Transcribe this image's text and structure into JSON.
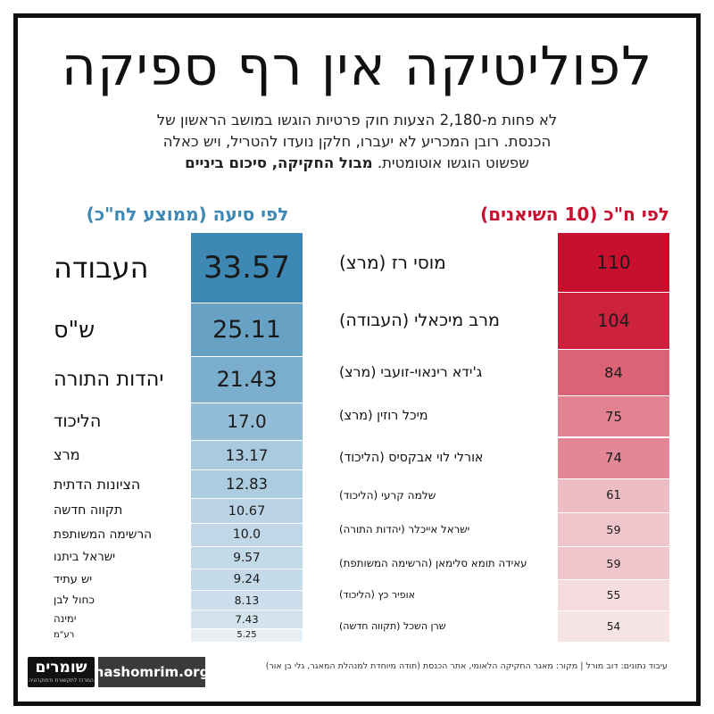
{
  "header": {
    "title": "לפוליטיקה אין רף ספיקה",
    "subtitle_line1": "לא פחות מ-2,180 הצעות חוק פרטיות הוגשו במושב הראשון של",
    "subtitle_line2": "הכנסת. רובן המכריע לא יעברו, חלקן נועדו להטריל, ויש כאלה",
    "subtitle_line3_normal": "שפשוט הוגשו אוטומטית.",
    "subtitle_line3_bold": "מבול החקיקה, סיכום ביניים"
  },
  "colors": {
    "left_accent": "#3d88b5",
    "right_accent": "#c8102e"
  },
  "chart_data": [
    {
      "type": "bar",
      "title": "לפי סיעה (ממוצע לח\"כ)",
      "categories": [
        "העבודה",
        "ש\"ס",
        "יהדות התורה",
        "הליכוד",
        "מרצ",
        "הציונות הדתית",
        "תקווה חדשה",
        "הרשימה המשותפת",
        "ישראל ביתנו",
        "יש עתיד",
        "כחול לבן",
        "ימינה",
        "רע\"מ"
      ],
      "values": [
        33.57,
        25.11,
        21.43,
        17.0,
        13.17,
        12.83,
        10.67,
        10.0,
        9.57,
        9.24,
        8.13,
        7.43,
        5.25
      ],
      "value_labels": [
        "33.57",
        "25.11",
        "21.43",
        "17.0",
        "13.17",
        "12.83",
        "10.67",
        "10.0",
        "9.57",
        "9.24",
        "8.13",
        "7.43",
        "5.25"
      ]
    },
    {
      "type": "bar",
      "title": "לפי ח\"כ (10 השיאנים)",
      "categories": [
        "מוסי רז (מרצ)",
        "מרב מיכאלי (העבודה)",
        "ג'ידא רינאוי-זועבי (מרצ)",
        "מיכל רוזין (מרצ)",
        "אורלי לוי אבקסיס (הליכוד)",
        "שלמה קרעי (הליכוד)",
        "ישראל אייכלר (יהדות התורה)",
        "עאידה תומא סלימאן (הרשימה המשותפת)",
        "אופיר כץ (הליכוד)",
        "שרן השכל (תקווה חדשה)"
      ],
      "values": [
        110,
        104,
        84,
        75,
        74,
        61,
        59,
        59,
        55,
        54
      ],
      "value_labels": [
        "110",
        "104",
        "84",
        "75",
        "74",
        "61",
        "59",
        "59",
        "55",
        "54"
      ]
    }
  ],
  "footer": {
    "source": "עיבוד נתונים: דוב מורל | מקור: מאגר החקיקה הלאומי, אתר הכנסת (תודה מיוחדת למנהלת המאגר, גלי בן אור)",
    "logo": "שומרים",
    "logo_sub": "המרכז לתקשורת ודמוקרטיה",
    "url": "hashomrim.org"
  }
}
